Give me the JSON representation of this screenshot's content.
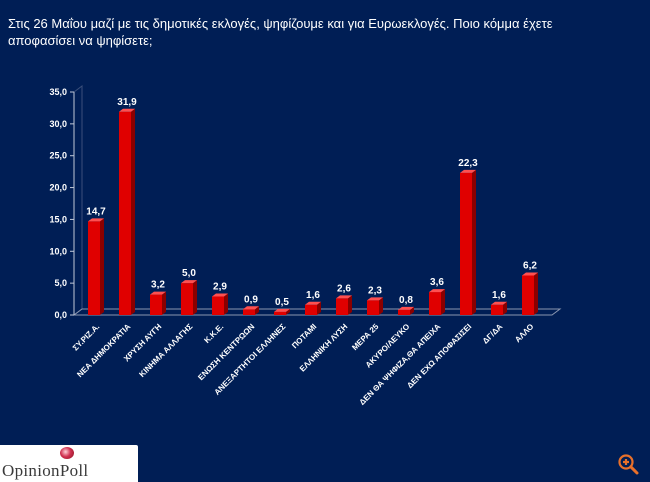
{
  "title": "Στις 26 Μαΐου μαζί με τις δημοτικές εκλογές, ψηφίζουμε και για Ευρωεκλογές. Ποιο κόμμα έχετε αποφασίσει να ψηφίσετε;",
  "logo": {
    "text": "OpinionPoll"
  },
  "zoom": {
    "icon": "zoom-in-icon"
  },
  "colors": {
    "background": "#001e55",
    "bar": "#e00000",
    "bar_dark": "#8a0000",
    "text": "#ffffff",
    "logo_text": "#3a3a3a",
    "zoom_icon": "#e8702a"
  },
  "chart_data": {
    "type": "bar",
    "title": "",
    "xlabel": "",
    "ylabel": "",
    "ylim": [
      0,
      35
    ],
    "yticks": [
      "0,0",
      "5,0",
      "10,0",
      "15,0",
      "20,0",
      "25,0",
      "30,0",
      "35,0"
    ],
    "grid": false,
    "legend": "none",
    "categories": [
      "ΣΥ.ΡΙΖ.Α.",
      "ΝΕΑ ΔΗΜΟΚΡΑΤΙΑ",
      "ΧΡΥΣΗ ΑΥΓΗ",
      "ΚΙΝΗΜΑ ΑΛΛΑΓΗΣ",
      "Κ.Κ.Ε.",
      "ΕΝΩΣΗ ΚΕΝΤΡΩΩΝ",
      "ΑΝΕΞΑΡΤΗΤΟΙ ΕΛΛΗΝΕΣ",
      "ΠΟΤΑΜΙ",
      "ΕΛΛΗΝΙΚΗ ΛΥΣΗ",
      "ΜΕΡΑ 25",
      "ΑΚΥΡΟ/ΛΕΥΚΟ",
      "ΔΕΝ ΘΑ ΨΗΦΙΖΑ,ΘΑ ΑΠΕΙΧΑ",
      "ΔΕΝ ΕΧΩ ΑΠΟΦΑΣΙΣΕΙ",
      "ΔΓ/ΔΑ",
      "ΑΛΛΟ"
    ],
    "values": [
      14.7,
      31.9,
      3.2,
      5.0,
      2.9,
      0.9,
      0.5,
      1.6,
      2.6,
      2.3,
      0.8,
      3.6,
      22.3,
      1.6,
      6.2
    ],
    "data_labels": [
      "14,7",
      "31,9",
      "3,2",
      "5,0",
      "2,9",
      "0,9",
      "0,5",
      "1,6",
      "2,6",
      "2,3",
      "0,8",
      "3,6",
      "22,3",
      "1,6",
      "6,2"
    ]
  }
}
